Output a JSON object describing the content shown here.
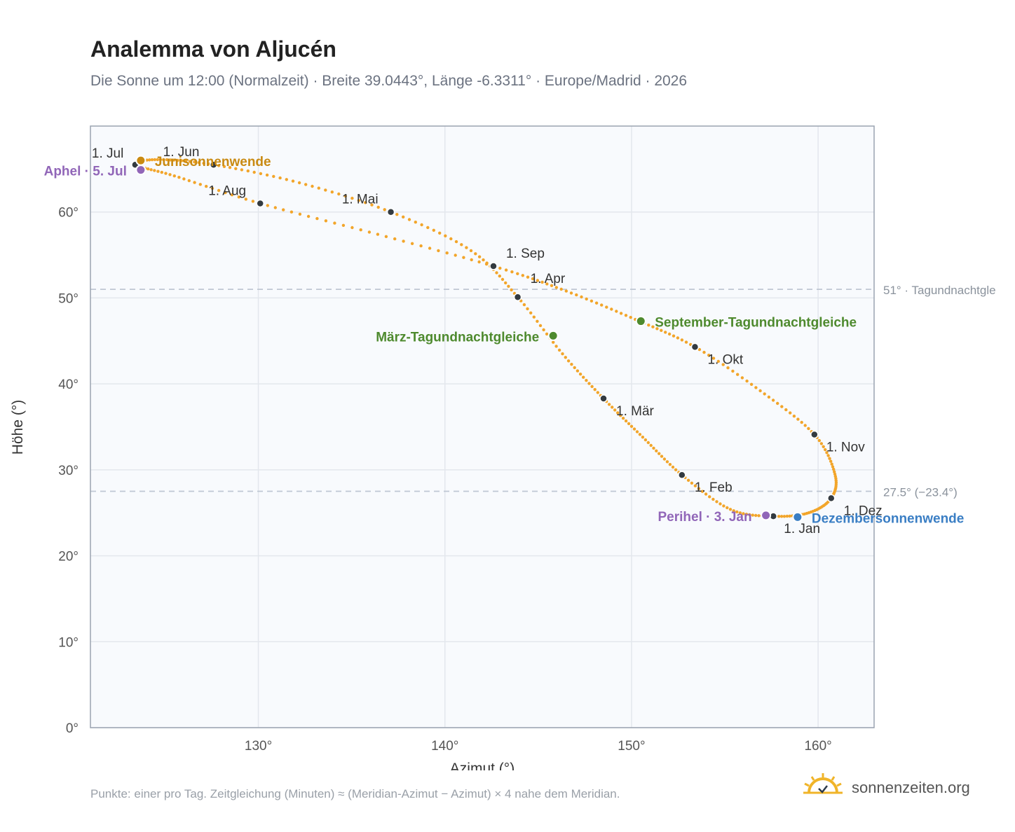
{
  "header": {
    "title": "Analemma von Aljucén",
    "subtitle": "Die Sonne um 12:00 (Normalzeit) · Breite 39.0443°, Länge -6.3311° · Europe/Madrid · 2026"
  },
  "footer": {
    "note": "Punkte: einer pro Tag. Zeitgleichung (Minuten) ≈ (Meridian-Azimut − Azimut) × 4 nahe dem Meridian.",
    "brand": "sonnenzeiten.org"
  },
  "colors": {
    "curve": "#f2a52a",
    "month_point": "#333a40",
    "junisonnenwende": "#c98a12",
    "dezembersonnenwende": "#3a7ec4",
    "tagundnachtgleiche": "#4e8a2e",
    "apsis": "#9166b8",
    "reference_line": "#bfc7d3"
  },
  "chart_data": {
    "type": "scatter",
    "title": "Analemma von Aljucén",
    "xlabel": "Azimut (°)",
    "ylabel": "Höhe (°)",
    "xlim": [
      121,
      163
    ],
    "ylim": [
      0,
      70
    ],
    "x_ticks": [
      {
        "value": 130,
        "label": "130°"
      },
      {
        "value": 140,
        "label": "140°"
      },
      {
        "value": 150,
        "label": "150°"
      },
      {
        "value": 160,
        "label": "160°"
      }
    ],
    "y_ticks": [
      {
        "value": 0,
        "label": "0°"
      },
      {
        "value": 10,
        "label": "10°"
      },
      {
        "value": 20,
        "label": "20°"
      },
      {
        "value": 30,
        "label": "30°"
      },
      {
        "value": 40,
        "label": "40°"
      },
      {
        "value": 50,
        "label": "50°"
      },
      {
        "value": 60,
        "label": "60°"
      }
    ],
    "grid": true,
    "reference_lines": [
      {
        "y": 51,
        "label": "51° · Tagundnachtgle"
      },
      {
        "y": 27.5,
        "label": "27.5° (−23.4°)"
      }
    ],
    "series": [
      {
        "points": [
          [
            157.6,
            24.6
          ],
          [
            155.3,
            25.4
          ],
          [
            152.7,
            29.4
          ],
          [
            150.6,
            33.8
          ],
          [
            148.5,
            38.3
          ],
          [
            146.3,
            43.5
          ],
          [
            143.9,
            50.1
          ],
          [
            141.4,
            55.5
          ],
          [
            137.1,
            60.0
          ],
          [
            132.2,
            63.4
          ],
          [
            127.6,
            65.5
          ],
          [
            124.6,
            66.1
          ],
          [
            123.4,
            65.5
          ],
          [
            125.5,
            64.2
          ],
          [
            130.1,
            61.0
          ],
          [
            136.4,
            57.4
          ],
          [
            142.6,
            53.7
          ],
          [
            146.5,
            50.8
          ],
          [
            150.2,
            47.5
          ],
          [
            153.4,
            44.3
          ],
          [
            156.9,
            39.2
          ],
          [
            159.8,
            34.1
          ],
          [
            160.9,
            29.5
          ],
          [
            160.7,
            26.7
          ],
          [
            159.5,
            25.0
          ],
          [
            157.6,
            24.6
          ]
        ]
      }
    ],
    "month_markers": [
      {
        "label": "1. Jan",
        "x": 157.6,
        "y": 24.6
      },
      {
        "label": "1. Feb",
        "x": 152.7,
        "y": 29.4
      },
      {
        "label": "1. Mär",
        "x": 148.5,
        "y": 38.3
      },
      {
        "label": "1. Apr",
        "x": 143.9,
        "y": 50.1
      },
      {
        "label": "1. Mai",
        "x": 137.1,
        "y": 60.0
      },
      {
        "label": "1. Jun",
        "x": 127.6,
        "y": 65.5
      },
      {
        "label": "1. Jul",
        "x": 123.4,
        "y": 65.5
      },
      {
        "label": "1. Aug",
        "x": 130.1,
        "y": 61.0
      },
      {
        "label": "1. Sep",
        "x": 142.6,
        "y": 53.7
      },
      {
        "label": "1. Okt",
        "x": 153.4,
        "y": 44.3
      },
      {
        "label": "1. Nov",
        "x": 159.8,
        "y": 34.1
      },
      {
        "label": "1. Dez",
        "x": 160.7,
        "y": 26.7
      }
    ],
    "events": [
      {
        "label": "Junisonnenwende",
        "x": 123.7,
        "y": 66.0,
        "color_key": "junisonnenwende"
      },
      {
        "label": "Dezembersonnenwende",
        "x": 158.9,
        "y": 24.5,
        "color_key": "dezembersonnenwende"
      },
      {
        "label": "März-Tagundnachtgleiche",
        "x": 145.8,
        "y": 45.6,
        "color_key": "tagundnachtgleiche"
      },
      {
        "label": "September-Tagundnachtgleiche",
        "x": 150.5,
        "y": 47.3,
        "color_key": "tagundnachtgleiche"
      },
      {
        "label": "Aphel · 5. Jul",
        "x": 123.7,
        "y": 64.9,
        "color_key": "apsis"
      },
      {
        "label": "Perihel · 3. Jan",
        "x": 157.2,
        "y": 24.7,
        "color_key": "apsis"
      }
    ]
  }
}
